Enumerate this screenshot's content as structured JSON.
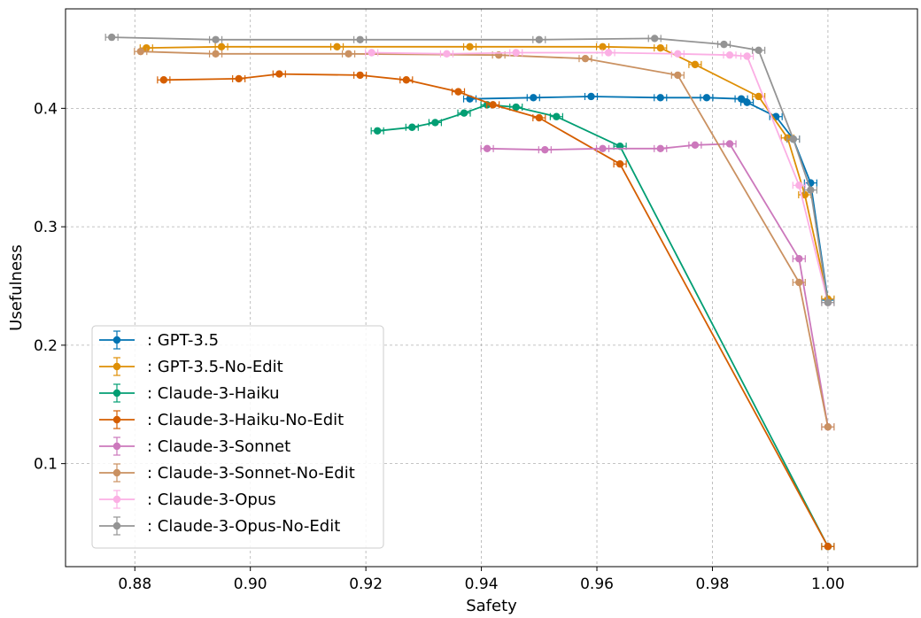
{
  "chart_data": {
    "type": "line",
    "xlabel": "Safety",
    "ylabel": "Usefulness",
    "xlim": [
      0.868,
      1.0155
    ],
    "ylim": [
      0.013,
      0.484
    ],
    "xticks": [
      "0.88",
      "0.90",
      "0.92",
      "0.94",
      "0.96",
      "0.98",
      "1.00"
    ],
    "xtick_values": [
      0.88,
      0.9,
      0.92,
      0.94,
      0.96,
      0.98,
      1.0
    ],
    "yticks": [
      "0.1",
      "0.2",
      "0.3",
      "0.4"
    ],
    "ytick_values": [
      0.1,
      0.2,
      0.3,
      0.4
    ],
    "grid": true,
    "legend_position": "bottom-left",
    "series": [
      {
        "name": ": GPT-3.5",
        "color": "#0173b2",
        "points": [
          [
            0.938,
            0.408
          ],
          [
            0.949,
            0.409
          ],
          [
            0.959,
            0.41
          ],
          [
            0.971,
            0.409
          ],
          [
            0.979,
            0.409
          ],
          [
            0.985,
            0.408
          ],
          [
            0.986,
            0.405
          ],
          [
            0.991,
            0.393
          ],
          [
            0.994,
            0.374
          ],
          [
            0.997,
            0.337
          ],
          [
            1.0,
            0.238
          ]
        ]
      },
      {
        "name": ": GPT-3.5-No-Edit",
        "color": "#de8f05",
        "points": [
          [
            0.882,
            0.451
          ],
          [
            0.895,
            0.452
          ],
          [
            0.915,
            0.452
          ],
          [
            0.938,
            0.452
          ],
          [
            0.961,
            0.452
          ],
          [
            0.971,
            0.451
          ],
          [
            0.977,
            0.437
          ],
          [
            0.988,
            0.41
          ],
          [
            0.993,
            0.375
          ],
          [
            0.996,
            0.327
          ],
          [
            1.0,
            0.239
          ]
        ]
      },
      {
        "name": ": Claude-3-Haiku",
        "color": "#029e73",
        "points": [
          [
            0.922,
            0.381
          ],
          [
            0.928,
            0.384
          ],
          [
            0.932,
            0.388
          ],
          [
            0.937,
            0.396
          ],
          [
            0.941,
            0.403
          ],
          [
            0.946,
            0.401
          ],
          [
            0.953,
            0.393
          ],
          [
            0.964,
            0.368
          ],
          [
            1.0,
            0.03
          ]
        ]
      },
      {
        "name": ": Claude-3-Haiku-No-Edit",
        "color": "#d55e00",
        "points": [
          [
            0.885,
            0.424
          ],
          [
            0.898,
            0.425
          ],
          [
            0.905,
            0.429
          ],
          [
            0.919,
            0.428
          ],
          [
            0.927,
            0.424
          ],
          [
            0.936,
            0.414
          ],
          [
            0.942,
            0.403
          ],
          [
            0.95,
            0.392
          ],
          [
            0.964,
            0.353
          ],
          [
            1.0,
            0.03
          ]
        ]
      },
      {
        "name": ": Claude-3-Sonnet",
        "color": "#cc78bc",
        "points": [
          [
            0.941,
            0.366
          ],
          [
            0.951,
            0.365
          ],
          [
            0.961,
            0.366
          ],
          [
            0.971,
            0.366
          ],
          [
            0.977,
            0.369
          ],
          [
            0.983,
            0.37
          ],
          [
            0.995,
            0.273
          ],
          [
            1.0,
            0.131
          ]
        ]
      },
      {
        "name": ": Claude-3-Sonnet-No-Edit",
        "color": "#ca9161",
        "points": [
          [
            0.881,
            0.448
          ],
          [
            0.894,
            0.446
          ],
          [
            0.917,
            0.446
          ],
          [
            0.943,
            0.445
          ],
          [
            0.958,
            0.442
          ],
          [
            0.974,
            0.428
          ],
          [
            0.995,
            0.253
          ],
          [
            1.0,
            0.131
          ]
        ]
      },
      {
        "name": ": Claude-3-Opus",
        "color": "#fbafe4",
        "points": [
          [
            0.921,
            0.447
          ],
          [
            0.934,
            0.446
          ],
          [
            0.946,
            0.447
          ],
          [
            0.962,
            0.447
          ],
          [
            0.974,
            0.446
          ],
          [
            0.983,
            0.445
          ],
          [
            0.986,
            0.444
          ],
          [
            0.995,
            0.335
          ],
          [
            1.0,
            0.236
          ]
        ]
      },
      {
        "name": ": Claude-3-Opus-No-Edit",
        "color": "#949494",
        "points": [
          [
            0.876,
            0.46
          ],
          [
            0.894,
            0.458
          ],
          [
            0.919,
            0.458
          ],
          [
            0.95,
            0.458
          ],
          [
            0.97,
            0.459
          ],
          [
            0.982,
            0.454
          ],
          [
            0.988,
            0.449
          ],
          [
            0.994,
            0.374
          ],
          [
            0.997,
            0.331
          ],
          [
            1.0,
            0.236
          ]
        ]
      }
    ]
  }
}
